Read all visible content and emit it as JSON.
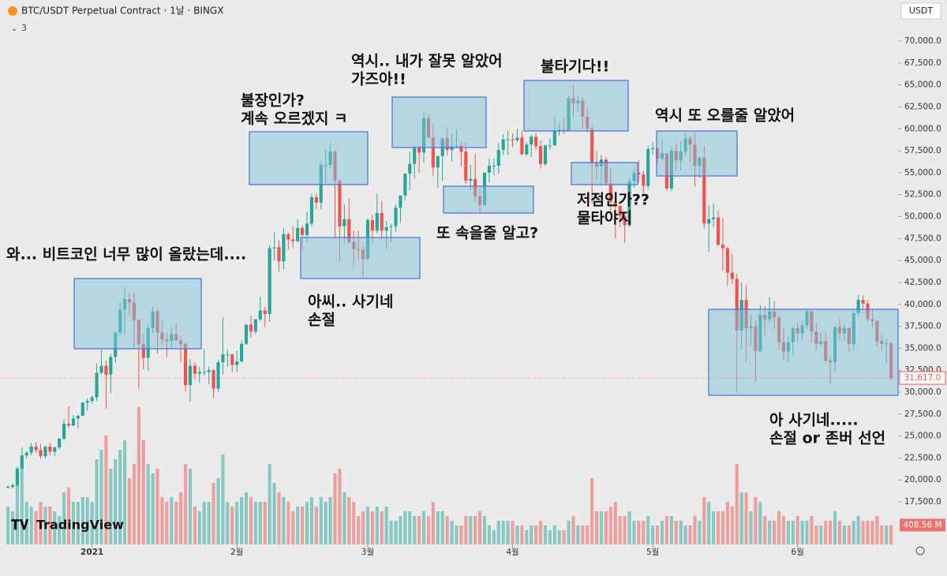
{
  "header": {
    "symbol": "BTC/USDT Perpetual Contract · 1날 · BINGX",
    "indicator_count": 3,
    "currency": "USDT",
    "logo": "TradingView"
  },
  "chart_data": {
    "type": "candlestick",
    "up_color": "#26a69a",
    "down_color": "#ef5350",
    "xlim": [
      -1.7,
      190.5
    ],
    "ylim": [
      12650,
      71980
    ],
    "vlim": [
      0,
      3000
    ],
    "xticks": [
      {
        "value": 18,
        "label": "2021"
      },
      {
        "value": 49,
        "label": "2월"
      },
      {
        "value": 77,
        "label": "3월"
      },
      {
        "value": 108,
        "label": "4월"
      },
      {
        "value": 138,
        "label": "5월"
      },
      {
        "value": 169,
        "label": "6월"
      }
    ],
    "yticks": [
      {
        "value": 70000,
        "label": "70,000.0"
      },
      {
        "value": 67500,
        "label": "67,500.0"
      },
      {
        "value": 65000,
        "label": "65,000.0"
      },
      {
        "value": 62500,
        "label": "62,500.0"
      },
      {
        "value": 60000,
        "label": "60,000.0"
      },
      {
        "value": 57500,
        "label": "57,500.0"
      },
      {
        "value": 55000,
        "label": "55,000.0"
      },
      {
        "value": 52500,
        "label": "52,500.0"
      },
      {
        "value": 50000,
        "label": "50,000.0"
      },
      {
        "value": 47500,
        "label": "47,500.0"
      },
      {
        "value": 45000,
        "label": "45,000.0"
      },
      {
        "value": 42500,
        "label": "42,500.0"
      },
      {
        "value": 40000,
        "label": "40,000.0"
      },
      {
        "value": 37500,
        "label": "37,500.0"
      },
      {
        "value": 35000,
        "label": "35,000.0"
      },
      {
        "value": 32500,
        "label": "32,500.0"
      },
      {
        "value": 30000,
        "label": "30,000.0"
      },
      {
        "value": 27500,
        "label": "27,500.0"
      },
      {
        "value": 25000,
        "label": "25,000.0"
      },
      {
        "value": 22500,
        "label": "22,500.0"
      },
      {
        "value": 20000,
        "label": "20,000.0"
      },
      {
        "value": 17500,
        "label": "17,500.0"
      }
    ],
    "last_price": {
      "value": 31617,
      "label": "31,617.0"
    },
    "last_volume_label": "408.56 M",
    "annotations": [
      [
        "와... 비트코인 너무 많이 올랐는데...."
      ],
      [
        "불장인가?",
        "계속 오르겠지 ㅋ"
      ],
      [
        "역시.. 내가 잘못 알았어",
        "가즈아!!"
      ],
      [
        "불타기다!!"
      ],
      [
        "역시 또 오를줄 알았어"
      ],
      [
        "또 속을줄 알고?"
      ],
      [
        "저점인가??",
        "물타야지"
      ],
      [
        "아씨.. 사기네",
        "손절"
      ],
      [
        "아 사기네.....",
        "손절 or 존버 선언"
      ]
    ],
    "ohlc": [
      [
        19150,
        19400,
        19000,
        19200
      ],
      [
        19200,
        19600,
        19000,
        19400
      ],
      [
        19400,
        21500,
        19300,
        21300
      ],
      [
        21300,
        23700,
        21200,
        22800
      ],
      [
        22800,
        23300,
        22400,
        23100
      ],
      [
        23100,
        24200,
        22800,
        23800
      ],
      [
        23800,
        24300,
        23100,
        23400
      ],
      [
        23400,
        24100,
        22400,
        22700
      ],
      [
        22700,
        23900,
        22400,
        23800
      ],
      [
        23800,
        24200,
        22800,
        23200
      ],
      [
        23200,
        23800,
        22700,
        23700
      ],
      [
        23700,
        24800,
        23500,
        24700
      ],
      [
        24700,
        26900,
        24500,
        26400
      ],
      [
        26400,
        28400,
        25900,
        26200
      ],
      [
        26200,
        27400,
        26100,
        27000
      ],
      [
        27000,
        27400,
        25900,
        27300
      ],
      [
        27300,
        28900,
        27300,
        28800
      ],
      [
        28800,
        29300,
        27900,
        29000
      ],
      [
        29000,
        29600,
        28700,
        29400
      ],
      [
        29400,
        33300,
        29000,
        32200
      ],
      [
        32200,
        34800,
        32000,
        33000
      ],
      [
        33000,
        33600,
        28100,
        32000
      ],
      [
        32000,
        34400,
        29900,
        34000
      ],
      [
        34000,
        36900,
        33300,
        36800
      ],
      [
        36800,
        40300,
        36300,
        39400
      ],
      [
        39400,
        41900,
        36500,
        40600
      ],
      [
        40600,
        41300,
        38700,
        40200
      ],
      [
        40200,
        41400,
        35100,
        38200
      ],
      [
        38200,
        38300,
        30400,
        35500
      ],
      [
        35500,
        36600,
        32600,
        33900
      ],
      [
        33900,
        37800,
        32400,
        37300
      ],
      [
        37300,
        39700,
        36700,
        39200
      ],
      [
        39200,
        39500,
        34400,
        36800
      ],
      [
        36800,
        38100,
        35400,
        36000
      ],
      [
        36000,
        36800,
        34000,
        35800
      ],
      [
        35800,
        37400,
        34900,
        36600
      ],
      [
        36600,
        37900,
        35800,
        35900
      ],
      [
        35900,
        36400,
        33400,
        35500
      ],
      [
        35500,
        35600,
        30100,
        30800
      ],
      [
        30800,
        33800,
        28900,
        33000
      ],
      [
        33000,
        33400,
        31400,
        32100
      ],
      [
        32100,
        32900,
        31100,
        32300
      ],
      [
        32300,
        34900,
        31900,
        32300
      ],
      [
        32300,
        32900,
        30900,
        32500
      ],
      [
        32500,
        32600,
        29300,
        30400
      ],
      [
        30400,
        33700,
        30000,
        33400
      ],
      [
        33400,
        38500,
        32000,
        34300
      ],
      [
        34300,
        34900,
        32900,
        34300
      ],
      [
        34300,
        34400,
        32300,
        33100
      ],
      [
        33100,
        34700,
        32300,
        33500
      ],
      [
        33500,
        35900,
        33400,
        35500
      ],
      [
        35500,
        37700,
        35400,
        37700
      ],
      [
        37700,
        38700,
        36200,
        36900
      ],
      [
        36900,
        38300,
        36600,
        38300
      ],
      [
        38300,
        40900,
        38100,
        39300
      ],
      [
        39300,
        39700,
        37400,
        38900
      ],
      [
        38900,
        46800,
        38000,
        46400
      ],
      [
        46400,
        48200,
        45000,
        46500
      ],
      [
        46500,
        47300,
        43700,
        44900
      ],
      [
        44900,
        48700,
        44000,
        48000
      ],
      [
        48000,
        48200,
        46200,
        47400
      ],
      [
        47400,
        48900,
        46400,
        47200
      ],
      [
        47200,
        49700,
        47000,
        48700
      ],
      [
        48700,
        49000,
        46200,
        47900
      ],
      [
        47900,
        50600,
        47100,
        49200
      ],
      [
        49200,
        52600,
        48900,
        52200
      ],
      [
        52200,
        52600,
        50900,
        51600
      ],
      [
        51600,
        56300,
        50800,
        55900
      ],
      [
        55900,
        57600,
        53800,
        55900
      ],
      [
        55900,
        58400,
        55500,
        57400
      ],
      [
        57400,
        57500,
        47600,
        54100
      ],
      [
        54100,
        54200,
        44900,
        48900
      ],
      [
        48900,
        51400,
        47000,
        49700
      ],
      [
        49700,
        52100,
        46900,
        47100
      ],
      [
        47100,
        48400,
        44100,
        46300
      ],
      [
        46300,
        48400,
        45000,
        46200
      ],
      [
        46200,
        46600,
        43000,
        45200
      ],
      [
        45200,
        49800,
        45000,
        49600
      ],
      [
        49600,
        50200,
        47100,
        48400
      ],
      [
        48400,
        52600,
        48100,
        50400
      ],
      [
        50400,
        51800,
        47500,
        48400
      ],
      [
        48400,
        49500,
        46300,
        48800
      ],
      [
        48800,
        49200,
        47100,
        48900
      ],
      [
        48900,
        51400,
        48300,
        51000
      ],
      [
        51000,
        52400,
        49300,
        52400
      ],
      [
        52400,
        54900,
        51900,
        54900
      ],
      [
        54900,
        57400,
        53000,
        56000
      ],
      [
        56000,
        58100,
        54300,
        57800
      ],
      [
        57800,
        58100,
        55000,
        57300
      ],
      [
        57300,
        61800,
        56100,
        61200
      ],
      [
        61200,
        61700,
        59000,
        59000
      ],
      [
        59000,
        60600,
        54600,
        55600
      ],
      [
        55600,
        56900,
        53300,
        56900
      ],
      [
        56900,
        59000,
        54100,
        58900
      ],
      [
        58900,
        60100,
        57000,
        57600
      ],
      [
        57600,
        59400,
        56300,
        58000
      ],
      [
        58000,
        59900,
        57800,
        58100
      ],
      [
        58100,
        58500,
        55700,
        57400
      ],
      [
        57400,
        58400,
        53700,
        54100
      ],
      [
        54100,
        55900,
        53000,
        54300
      ],
      [
        54300,
        57200,
        51700,
        52300
      ],
      [
        52300,
        53200,
        50400,
        51300
      ],
      [
        51300,
        55100,
        51300,
        55000
      ],
      [
        55000,
        56600,
        53900,
        55800
      ],
      [
        55800,
        56600,
        54700,
        55800
      ],
      [
        55800,
        58400,
        54900,
        57600
      ],
      [
        57600,
        59400,
        57000,
        58800
      ],
      [
        58800,
        59800,
        57000,
        58800
      ],
      [
        58800,
        59500,
        57900,
        58700
      ],
      [
        58700,
        60000,
        58500,
        59000
      ],
      [
        59000,
        59800,
        57000,
        57100
      ],
      [
        57100,
        58500,
        56900,
        58200
      ],
      [
        58200,
        59300,
        56800,
        59100
      ],
      [
        59100,
        59500,
        57600,
        58000
      ],
      [
        58000,
        58700,
        55500,
        56000
      ],
      [
        56000,
        58200,
        55800,
        58100
      ],
      [
        58100,
        58900,
        57600,
        58100
      ],
      [
        58100,
        61300,
        58100,
        59800
      ],
      [
        59800,
        60700,
        59200,
        59900
      ],
      [
        59900,
        61200,
        59400,
        59800
      ],
      [
        59800,
        63800,
        59800,
        63500
      ],
      [
        63500,
        64900,
        61300,
        62900
      ],
      [
        62900,
        63800,
        62000,
        63200
      ],
      [
        63200,
        63600,
        60000,
        61400
      ],
      [
        61400,
        62500,
        59600,
        60000
      ],
      [
        60000,
        60400,
        51500,
        56200
      ],
      [
        56200,
        57500,
        54200,
        55700
      ],
      [
        55700,
        57000,
        53500,
        56500
      ],
      [
        56500,
        56800,
        53600,
        53800
      ],
      [
        53800,
        55500,
        50500,
        51700
      ],
      [
        51700,
        52200,
        47500,
        51200
      ],
      [
        51200,
        51300,
        48800,
        50100
      ],
      [
        50100,
        50600,
        47000,
        49000
      ],
      [
        49000,
        54400,
        48800,
        54000
      ],
      [
        54000,
        55500,
        53300,
        55000
      ],
      [
        55000,
        56400,
        53900,
        54800
      ],
      [
        54800,
        55200,
        52300,
        53500
      ],
      [
        53500,
        58000,
        53100,
        57700
      ],
      [
        57700,
        58500,
        57000,
        57800
      ],
      [
        57800,
        57900,
        56000,
        56600
      ],
      [
        56600,
        58900,
        56400,
        57200
      ],
      [
        57200,
        57200,
        53000,
        53200
      ],
      [
        53200,
        57900,
        52900,
        57500
      ],
      [
        57500,
        58300,
        55200,
        56400
      ],
      [
        56400,
        58600,
        55300,
        57400
      ],
      [
        57400,
        59500,
        56900,
        58900
      ],
      [
        58900,
        59200,
        56200,
        58200
      ],
      [
        58200,
        59600,
        53400,
        55800
      ],
      [
        55800,
        56900,
        54400,
        56700
      ],
      [
        56700,
        58000,
        48600,
        49200
      ],
      [
        49200,
        51300,
        46000,
        49700
      ],
      [
        49700,
        51500,
        48800,
        49900
      ],
      [
        49900,
        50700,
        46600,
        46800
      ],
      [
        46800,
        49800,
        43800,
        46400
      ],
      [
        46400,
        46600,
        42100,
        43600
      ],
      [
        43600,
        45800,
        42300,
        42900
      ],
      [
        42900,
        43500,
        30000,
        37000
      ],
      [
        37000,
        42500,
        34900,
        40500
      ],
      [
        40500,
        42200,
        33500,
        37300
      ],
      [
        37300,
        38800,
        35300,
        37500
      ],
      [
        37500,
        38200,
        31100,
        34700
      ],
      [
        34700,
        39900,
        34500,
        38800
      ],
      [
        38800,
        39800,
        36400,
        38300
      ],
      [
        38300,
        40800,
        37900,
        39200
      ],
      [
        39200,
        40400,
        37200,
        38500
      ],
      [
        38500,
        38800,
        34800,
        35700
      ],
      [
        35700,
        37300,
        33600,
        34600
      ],
      [
        34600,
        36400,
        33400,
        35700
      ],
      [
        35700,
        37500,
        34200,
        37300
      ],
      [
        37300,
        37900,
        35700,
        36700
      ],
      [
        36700,
        38200,
        35900,
        37600
      ],
      [
        37600,
        39500,
        37200,
        39200
      ],
      [
        39200,
        39300,
        35600,
        36900
      ],
      [
        36900,
        37900,
        34800,
        35500
      ],
      [
        35500,
        36800,
        35300,
        35800
      ],
      [
        35800,
        36800,
        33400,
        33600
      ],
      [
        33600,
        34100,
        31000,
        33400
      ],
      [
        33400,
        37500,
        32400,
        37400
      ],
      [
        37400,
        38400,
        35800,
        36700
      ],
      [
        36700,
        37700,
        35900,
        37300
      ],
      [
        37300,
        37400,
        34600,
        35500
      ],
      [
        35500,
        39300,
        34800,
        39000
      ],
      [
        39000,
        41100,
        38700,
        40500
      ],
      [
        40500,
        41000,
        39500,
        40100
      ],
      [
        40100,
        40500,
        38100,
        38300
      ],
      [
        38300,
        39500,
        37400,
        38100
      ],
      [
        38100,
        38200,
        35200,
        35800
      ],
      [
        35800,
        36500,
        34800,
        35500
      ],
      [
        35500,
        36000,
        33300,
        35600
      ],
      [
        35600,
        35700,
        31300,
        31617
      ]
    ],
    "volume": [
      800,
      700,
      1500,
      1600,
      900,
      800,
      700,
      900,
      800,
      800,
      700,
      600,
      1100,
      1200,
      900,
      900,
      1000,
      1000,
      900,
      1800,
      2000,
      2300,
      1600,
      1800,
      2000,
      2200,
      1400,
      1700,
      2900,
      2200,
      1700,
      1500,
      1600,
      1000,
      900,
      1000,
      900,
      1100,
      1700,
      1600,
      800,
      700,
      900,
      900,
      1300,
      1400,
      1900,
      900,
      800,
      900,
      1000,
      1100,
      1000,
      900,
      900,
      900,
      1700,
      1300,
      1100,
      1000,
      900,
      700,
      800,
      800,
      900,
      1000,
      800,
      1000,
      900,
      1000,
      1500,
      1600,
      1100,
      1000,
      900,
      600,
      700,
      800,
      700,
      800,
      700,
      800,
      500,
      500,
      600,
      700,
      700,
      600,
      600,
      700,
      600,
      900,
      700,
      700,
      600,
      500,
      400,
      400,
      600,
      600,
      600,
      700,
      600,
      400,
      300,
      500,
      500,
      500,
      500,
      400,
      400,
      300,
      400,
      400,
      500,
      400,
      300,
      400,
      300,
      300,
      500,
      600,
      400,
      400,
      400,
      1400,
      700,
      700,
      700,
      800,
      900,
      600,
      600,
      700,
      500,
      500,
      500,
      600,
      400,
      400,
      500,
      600,
      600,
      500,
      500,
      400,
      400,
      600,
      500,
      1000,
      900,
      700,
      700,
      700,
      900,
      800,
      1700,
      1100,
      1100,
      700,
      1000,
      900,
      600,
      500,
      500,
      700,
      600,
      500,
      500,
      600,
      500,
      500,
      600,
      400,
      400,
      500,
      500,
      700,
      500,
      400,
      400,
      500,
      600,
      500,
      500,
      500,
      600,
      400,
      400,
      408.56
    ]
  }
}
